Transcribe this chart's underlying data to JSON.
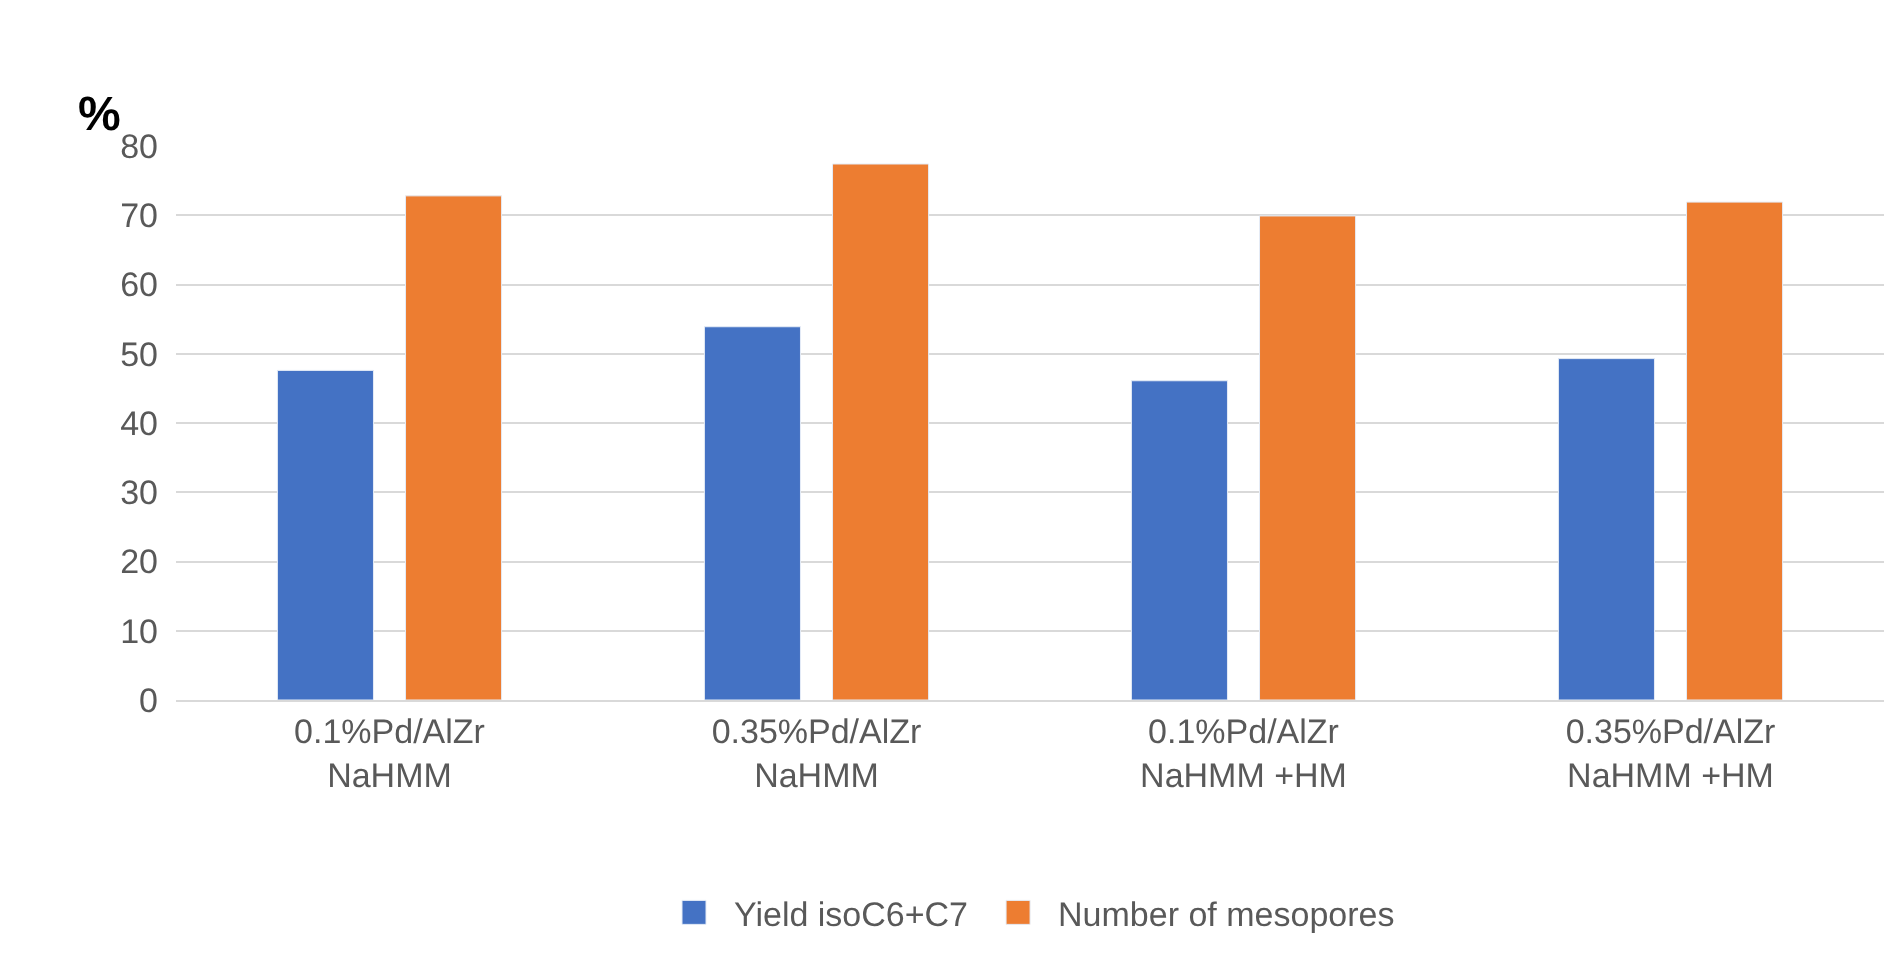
{
  "chart_data": {
    "type": "bar",
    "ylabel": "%",
    "categories": [
      "0.1%Pd/AlZr\nNaHMM",
      "0.35%Pd/AlZr\nNaHMM",
      "0.1%Pd/AlZr\nNaHMM +HM",
      "0.35%Pd/AlZr\nNaHMM +HM"
    ],
    "series": [
      {
        "name": "Yield isoC6+C7",
        "color": "#4472c4",
        "values": [
          47.6,
          53.9,
          46.1,
          49.3
        ]
      },
      {
        "name": "Number of mesopores",
        "color": "#ed7d31",
        "values": [
          72.8,
          77.4,
          69.9,
          71.9
        ]
      }
    ],
    "ylim": [
      0,
      80
    ],
    "yticks": [
      0,
      10,
      20,
      30,
      40,
      50,
      60,
      70,
      80
    ],
    "grid": "y",
    "legend": "bottom"
  }
}
